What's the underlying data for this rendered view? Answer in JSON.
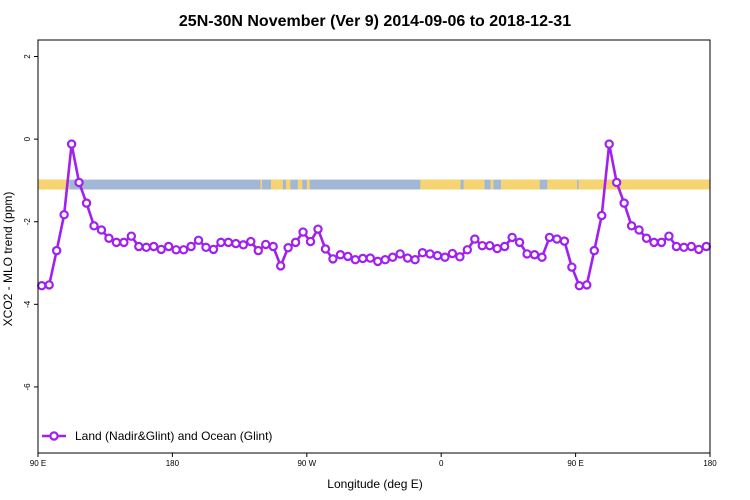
{
  "chart_data": {
    "type": "line",
    "title": "25N-30N November (Ver 9)   2014-09-06 to 2018-12-31",
    "xlabel": "Longitude (deg E)",
    "ylabel": "XCO2 - MLO trend (ppm)",
    "xlim": [
      90,
      540
    ],
    "ylim": [
      -7.6,
      2.4
    ],
    "x_ticks": [
      {
        "value": 90,
        "label": "90 E"
      },
      {
        "value": 180,
        "label": "180"
      },
      {
        "value": 270,
        "label": "90 W"
      },
      {
        "value": 360,
        "label": "0"
      },
      {
        "value": 450,
        "label": "90 E"
      },
      {
        "value": 540,
        "label": "180"
      }
    ],
    "y_ticks": [
      {
        "value": 2,
        "label": "2"
      },
      {
        "value": 0,
        "label": "0"
      },
      {
        "value": -2,
        "label": "-2"
      },
      {
        "value": -4,
        "label": "-4"
      },
      {
        "value": -6,
        "label": "-6"
      }
    ],
    "grid": false,
    "legend_position": "bottom-left",
    "colors": {
      "series": "#a020f0",
      "ocean": "#a2b7d6",
      "land": "#f5d471"
    },
    "land_ocean_band": {
      "y_low": -1.22,
      "y_high": -0.98,
      "land_segments": [
        [
          90,
          111
        ],
        [
          239,
          240
        ],
        [
          246,
          254
        ],
        [
          256,
          259
        ],
        [
          264,
          267
        ],
        [
          270,
          272
        ],
        [
          346,
          373
        ],
        [
          375,
          389
        ],
        [
          393,
          395
        ],
        [
          400,
          426
        ],
        [
          431,
          451
        ],
        [
          452,
          540
        ]
      ]
    },
    "series": [
      {
        "name": "Land (Nadir&Glint) and Ocean (Glint)",
        "x": [
          92.5,
          97.5,
          102.5,
          107.5,
          112.5,
          117.5,
          122.5,
          127.5,
          132.5,
          137.5,
          142.5,
          147.5,
          152.5,
          157.5,
          162.5,
          167.5,
          172.5,
          177.5,
          182.5,
          187.5,
          192.5,
          197.5,
          202.5,
          207.5,
          212.5,
          217.5,
          222.5,
          227.5,
          232.5,
          237.5,
          242.5,
          247.5,
          252.5,
          257.5,
          262.5,
          267.5,
          272.5,
          277.5,
          282.5,
          287.5,
          292.5,
          297.5,
          302.5,
          307.5,
          312.5,
          317.5,
          322.5,
          327.5,
          332.5,
          337.5,
          342.5,
          347.5,
          352.5,
          357.5,
          362.5,
          367.5,
          372.5,
          377.5,
          382.5,
          387.5,
          392.5,
          397.5,
          402.5,
          407.5,
          412.5,
          417.5,
          422.5,
          427.5,
          432.5,
          437.5,
          442.5,
          447.5,
          452.5,
          457.5,
          462.5,
          467.5,
          472.5,
          477.5,
          482.5,
          487.5,
          492.5,
          497.5,
          502.5,
          507.5,
          512.5,
          517.5,
          522.5,
          527.5,
          532.5,
          537.5
        ],
        "y": [
          -3.55,
          -3.53,
          -2.7,
          -1.83,
          -0.12,
          -1.05,
          -1.55,
          -2.1,
          -2.2,
          -2.4,
          -2.5,
          -2.5,
          -2.35,
          -2.6,
          -2.62,
          -2.6,
          -2.67,
          -2.6,
          -2.68,
          -2.68,
          -2.6,
          -2.45,
          -2.62,
          -2.67,
          -2.5,
          -2.5,
          -2.53,
          -2.56,
          -2.48,
          -2.7,
          -2.55,
          -2.6,
          -3.07,
          -2.63,
          -2.5,
          -2.25,
          -2.48,
          -2.18,
          -2.66,
          -2.9,
          -2.8,
          -2.84,
          -2.92,
          -2.89,
          -2.88,
          -2.96,
          -2.92,
          -2.86,
          -2.78,
          -2.88,
          -2.92,
          -2.75,
          -2.78,
          -2.82,
          -2.86,
          -2.77,
          -2.85,
          -2.68,
          -2.42,
          -2.58,
          -2.58,
          -2.65,
          -2.6,
          -2.38,
          -2.5,
          -2.78,
          -2.8,
          -2.86,
          -2.38,
          -2.42,
          -2.47,
          -3.1,
          -3.55,
          -3.53,
          -2.7,
          -1.85,
          -0.12,
          -1.05,
          -1.55,
          -2.1,
          -2.2,
          -2.4,
          -2.5,
          -2.5,
          -2.35,
          -2.6,
          -2.62,
          -2.6,
          -2.67,
          -2.6
        ]
      }
    ]
  }
}
